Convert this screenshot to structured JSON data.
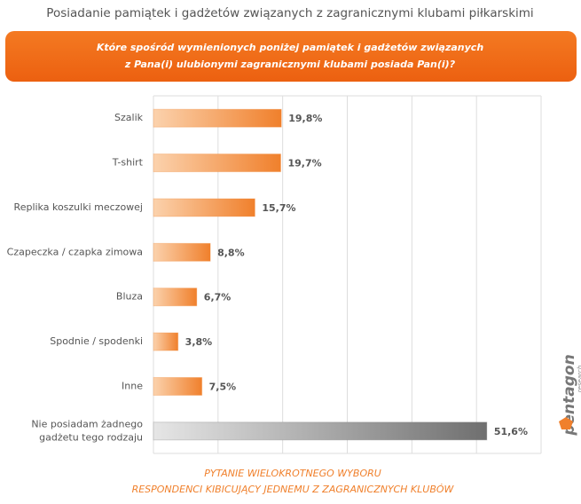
{
  "chart_data": {
    "type": "hbar",
    "title": "Posiadanie pamiątek i gadżetów związanych z zagranicznymi klubami piłkarskimi",
    "question": [
      "Które spośród wymienionych poniżej pamiątek i gadżetów związanych",
      "z Pana(i) ulubionymi zagranicznymi klubami posiada Pan(i)?"
    ],
    "categories": [
      "Szalik",
      "T-shirt",
      "Replika koszulki meczowej",
      "Czapeczka / czapka zimowa",
      "Bluza",
      "Spodnie / spodenki",
      "Inne",
      "Nie posiadam żadnego\ngadżetu tego rodzaju"
    ],
    "values": [
      19.8,
      19.7,
      15.7,
      8.8,
      6.7,
      3.8,
      7.5,
      51.6
    ],
    "value_labels": [
      "19,8%",
      "19,7%",
      "15,7%",
      "8,8%",
      "6,7%",
      "3,8%",
      "7,5%",
      "51,6%"
    ],
    "colors": [
      "#f0802c",
      "#f0802c",
      "#f0802c",
      "#f0802c",
      "#f0802c",
      "#f0802c",
      "#f0802c",
      "#777777"
    ],
    "xlim": [
      0,
      60
    ],
    "xticks": [
      0,
      10,
      20,
      30,
      40,
      50,
      60
    ],
    "show_tick_labels": false,
    "grid": true,
    "footnote": [
      "PYTANIE WIELOKROTNEGO WYBORU",
      "RESPONDENCI KIBICUJĄCY JEDNEMU Z ZAGRANICZNYCH KLUBÓW"
    ],
    "logo": [
      "pentagon",
      "research"
    ]
  }
}
